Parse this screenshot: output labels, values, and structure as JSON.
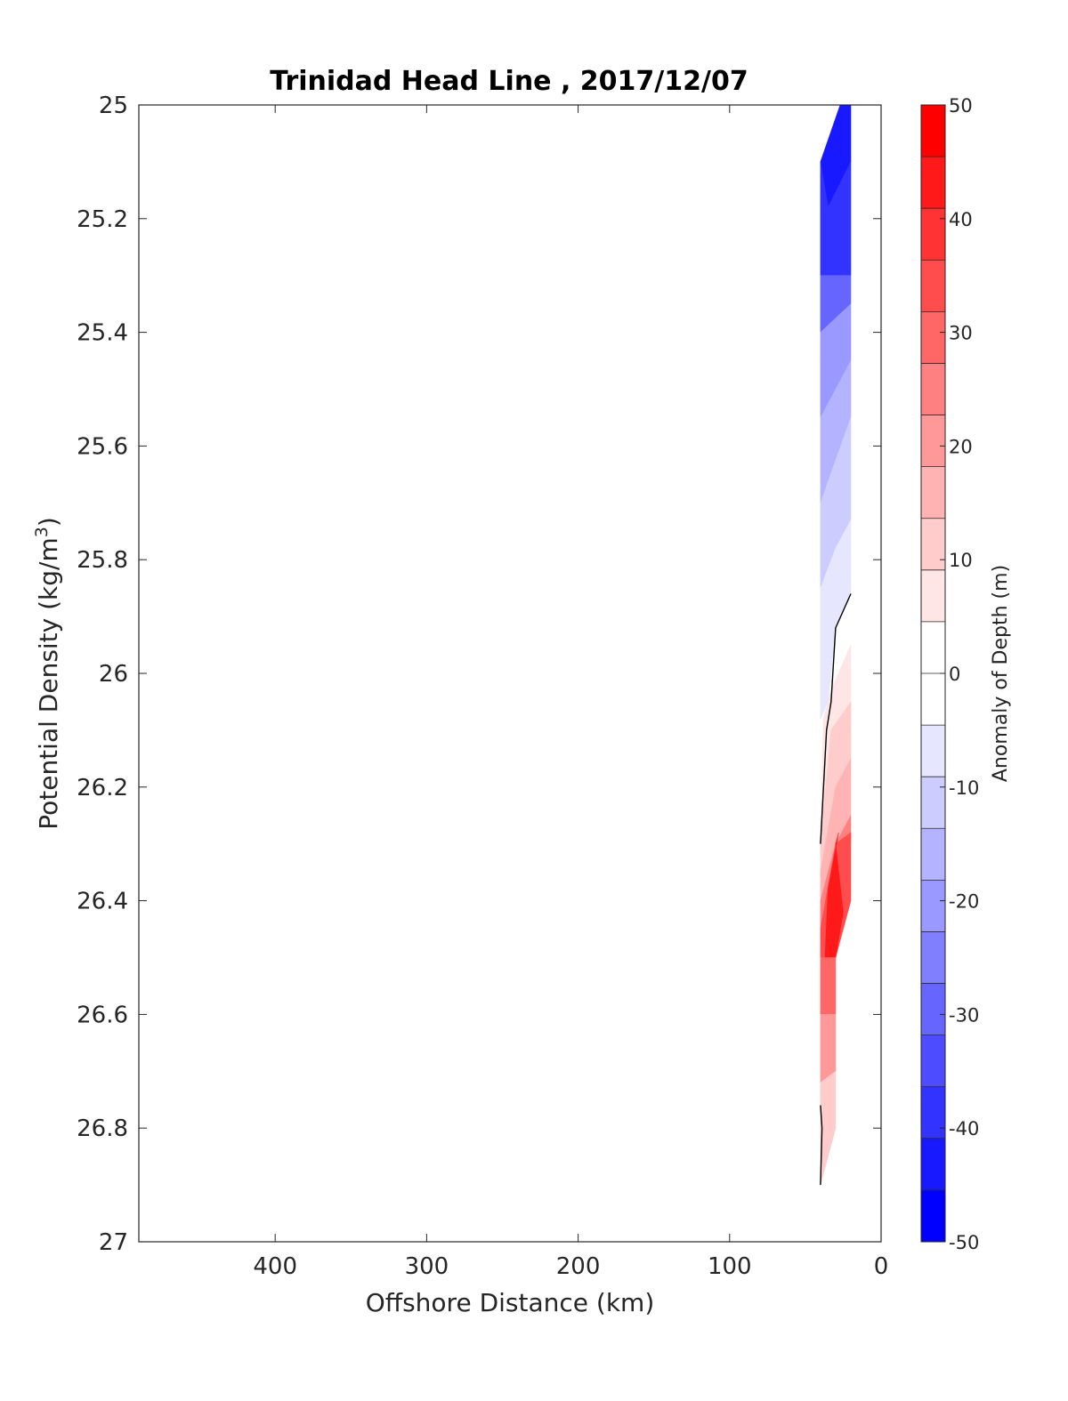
{
  "chart_data": {
    "type": "contour",
    "title": "Trinidad Head Line , 2017/12/07",
    "xlabel": "Offshore Distance (km)",
    "ylabel": "Potential Density (kg/m",
    "ylabel_superscript": "3",
    "ylabel_suffix": ")",
    "xlim": [
      490,
      0
    ],
    "xticks": [
      400,
      300,
      200,
      100,
      0
    ],
    "ylim": [
      25,
      27
    ],
    "yticks": [
      25,
      25.2,
      25.4,
      25.6,
      25.8,
      26,
      26.2,
      26.4,
      26.6,
      26.8,
      27
    ],
    "y_reversed": true,
    "colorbar": {
      "label": "Anomaly of Depth (m)",
      "range": [
        -50,
        50
      ],
      "step": 5,
      "ticks": [
        50,
        40,
        30,
        20,
        10,
        0,
        -10,
        -20,
        -30,
        -40,
        -50
      ],
      "colors": [
        "#0000ff",
        "#1919ff",
        "#3333ff",
        "#4d4dff",
        "#6666ff",
        "#8080ff",
        "#9999ff",
        "#b3b3ff",
        "#ccccff",
        "#e6e6ff",
        "#ffffff",
        "#ffffff",
        "#ffe6e6",
        "#ffcccc",
        "#ffb3b3",
        "#ff9999",
        "#ff8080",
        "#ff6666",
        "#ff4d4d",
        "#ff3333",
        "#ff1919",
        "#ff0000"
      ]
    },
    "stations_x": [
      40,
      30,
      20
    ],
    "regions": [
      {
        "level": -45,
        "color": "#1919ff",
        "poly": [
          [
            27,
            25.0
          ],
          [
            20,
            25.0
          ],
          [
            20,
            25.1
          ],
          [
            35,
            25.18
          ],
          [
            40,
            25.1
          ]
        ]
      },
      {
        "level": -40,
        "color": "#3333ff",
        "poly": [
          [
            40,
            25.1
          ],
          [
            35,
            25.18
          ],
          [
            20,
            25.1
          ],
          [
            20,
            25.3
          ],
          [
            30,
            25.3
          ],
          [
            40,
            25.3
          ]
        ]
      },
      {
        "level": -30,
        "color": "#6666ff",
        "poly": [
          [
            40,
            25.3
          ],
          [
            30,
            25.3
          ],
          [
            20,
            25.3
          ],
          [
            20,
            25.35
          ],
          [
            40,
            25.4
          ]
        ]
      },
      {
        "level": -20,
        "color": "#9999ff",
        "poly": [
          [
            40,
            25.4
          ],
          [
            20,
            25.35
          ],
          [
            20,
            25.45
          ],
          [
            40,
            25.55
          ]
        ]
      },
      {
        "level": -15,
        "color": "#b3b3ff",
        "poly": [
          [
            40,
            25.55
          ],
          [
            20,
            25.45
          ],
          [
            20,
            25.55
          ],
          [
            40,
            25.7
          ]
        ]
      },
      {
        "level": -10,
        "color": "#ccccff",
        "poly": [
          [
            40,
            25.7
          ],
          [
            20,
            25.55
          ],
          [
            20,
            25.73
          ],
          [
            30,
            25.78
          ],
          [
            40,
            25.85
          ]
        ]
      },
      {
        "level": -5,
        "color": "#e6e6ff",
        "poly": [
          [
            40,
            25.85
          ],
          [
            30,
            25.78
          ],
          [
            20,
            25.73
          ],
          [
            20,
            25.86
          ],
          [
            30,
            25.92
          ],
          [
            35,
            26.05
          ],
          [
            40,
            26.08
          ]
        ]
      },
      {
        "level": 5,
        "color": "#ffe6e6",
        "poly": [
          [
            20,
            25.95
          ],
          [
            20,
            26.1
          ],
          [
            30,
            26.15
          ],
          [
            40,
            26.3
          ],
          [
            38,
            26.08
          ],
          [
            33,
            26.03
          ]
        ]
      },
      {
        "level": 10,
        "color": "#ffcccc",
        "poly": [
          [
            20,
            26.05
          ],
          [
            20,
            26.15
          ],
          [
            30,
            26.2
          ],
          [
            40,
            26.35
          ],
          [
            40,
            26.3
          ],
          [
            33,
            26.1
          ]
        ]
      },
      {
        "level": 15,
        "color": "#ffb3b3",
        "poly": [
          [
            20,
            26.15
          ],
          [
            20,
            26.25
          ],
          [
            30,
            26.3
          ],
          [
            40,
            26.4
          ],
          [
            40,
            26.35
          ],
          [
            30,
            26.2
          ]
        ]
      },
      {
        "level": 25,
        "color": "#ff8080",
        "poly": [
          [
            20,
            26.25
          ],
          [
            20,
            26.3
          ],
          [
            40,
            26.45
          ],
          [
            40,
            26.4
          ],
          [
            30,
            26.3
          ]
        ]
      },
      {
        "level": 35,
        "color": "#ff4d4d",
        "poly": [
          [
            20,
            26.28
          ],
          [
            30,
            26.3
          ],
          [
            40,
            26.45
          ],
          [
            40,
            26.5
          ],
          [
            30,
            26.5
          ],
          [
            20,
            26.4
          ]
        ]
      },
      {
        "level": 45,
        "color": "#ff1919",
        "poly": [
          [
            28,
            26.28
          ],
          [
            30,
            26.3
          ],
          [
            25,
            26.42
          ],
          [
            30,
            26.5
          ],
          [
            37,
            26.5
          ],
          [
            35,
            26.38
          ]
        ]
      },
      {
        "level": 30,
        "color": "#ff6666",
        "poly": [
          [
            40,
            26.5
          ],
          [
            30,
            26.5
          ],
          [
            30,
            26.6
          ],
          [
            40,
            26.6
          ]
        ]
      },
      {
        "level": 20,
        "color": "#ff9999",
        "poly": [
          [
            40,
            26.6
          ],
          [
            30,
            26.6
          ],
          [
            30,
            26.7
          ],
          [
            40,
            26.72
          ]
        ]
      },
      {
        "level": 10,
        "color": "#ffcccc",
        "poly": [
          [
            40,
            26.72
          ],
          [
            30,
            26.7
          ],
          [
            30,
            26.8
          ],
          [
            35,
            26.85
          ],
          [
            40,
            26.9
          ]
        ]
      }
    ],
    "zero_contours": [
      [
        [
          20,
          25.86
        ],
        [
          30,
          25.92
        ],
        [
          33,
          26.05
        ],
        [
          36,
          26.1
        ],
        [
          40,
          26.3
        ]
      ],
      [
        [
          40,
          26.76
        ],
        [
          39,
          26.8
        ],
        [
          40,
          26.9
        ]
      ]
    ]
  }
}
